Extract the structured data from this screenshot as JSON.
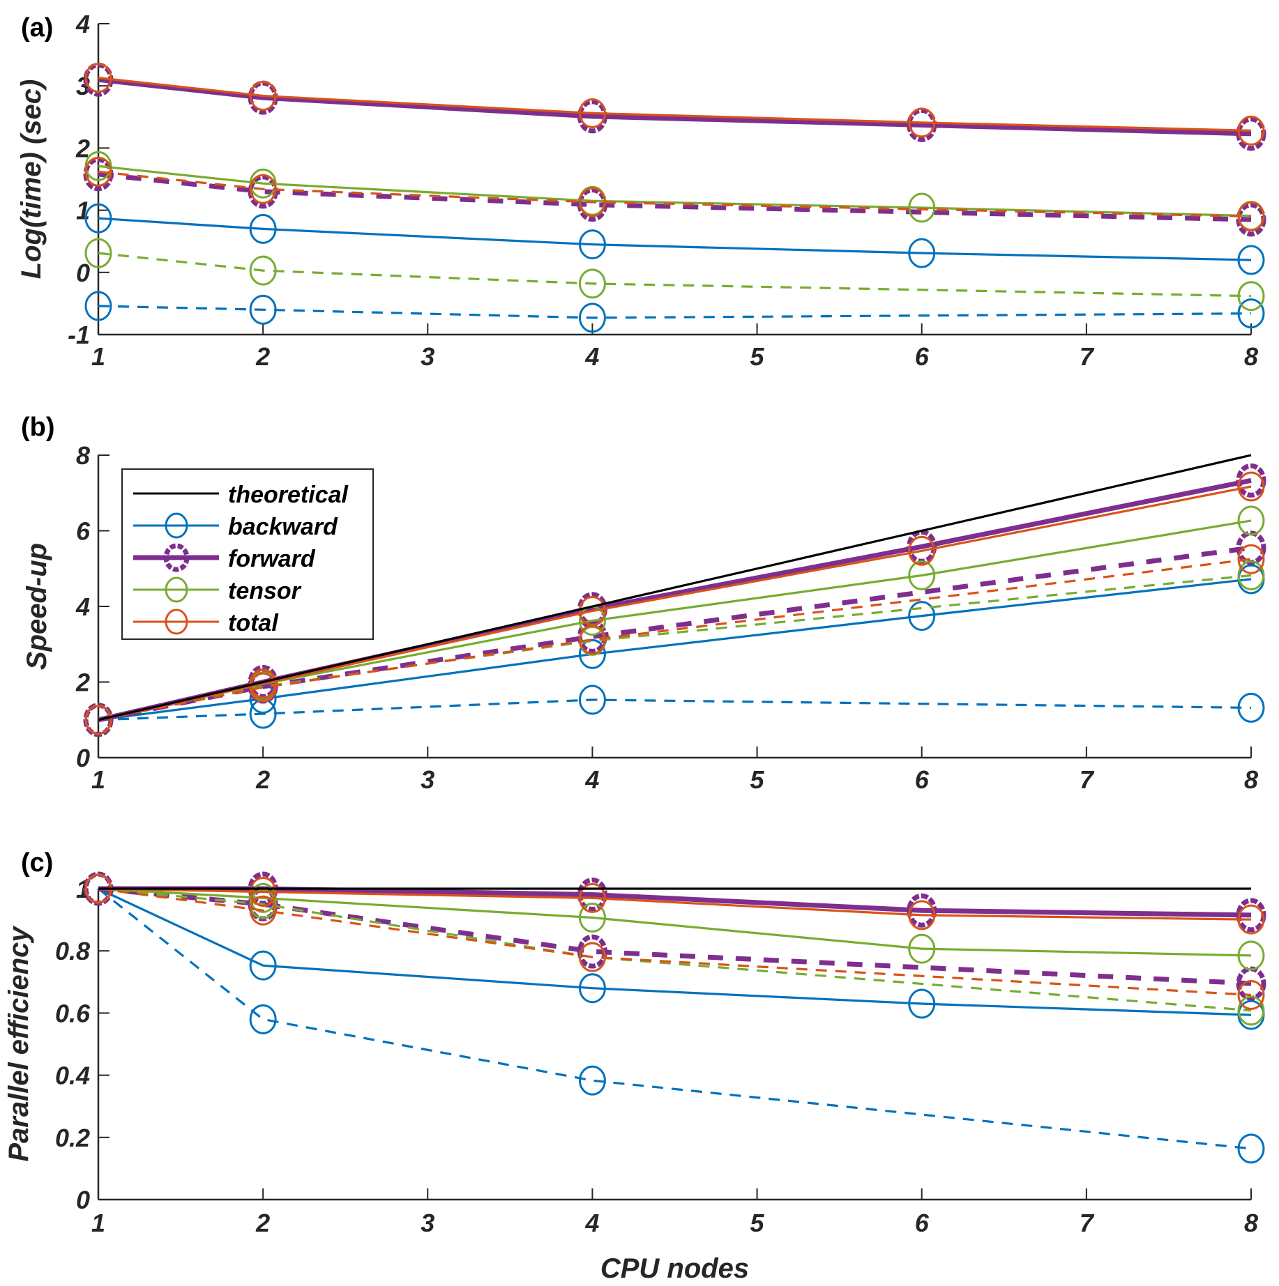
{
  "chart_data": [
    {
      "panel_label": "(a)",
      "type": "line",
      "title": "",
      "xlabel": "",
      "ylabel": "Log(time) (sec)",
      "xlim": [
        1,
        8
      ],
      "ylim": [
        -1,
        4
      ],
      "xticks": [
        1,
        2,
        3,
        4,
        5,
        6,
        7,
        8
      ],
      "yticks": [
        -1,
        0,
        1,
        2,
        3,
        4
      ],
      "grid": false,
      "series": [
        {
          "name": "backward",
          "style": "solid",
          "color": "#0072BD",
          "x": [
            1,
            2,
            4,
            6,
            8
          ],
          "y": [
            0.87,
            0.7,
            0.45,
            0.31,
            0.2
          ]
        },
        {
          "name": "backward (dashed)",
          "style": "dashed",
          "color": "#0072BD",
          "x": [
            1,
            2,
            4,
            8
          ],
          "y": [
            -0.54,
            -0.6,
            -0.73,
            -0.66
          ]
        },
        {
          "name": "tensor",
          "style": "solid",
          "color": "#77AC30",
          "x": [
            1,
            2,
            4,
            6,
            8
          ],
          "y": [
            1.71,
            1.43,
            1.15,
            1.04,
            0.91
          ]
        },
        {
          "name": "tensor (dashed)",
          "style": "dashed",
          "color": "#77AC30",
          "x": [
            1,
            2,
            4,
            8
          ],
          "y": [
            0.31,
            0.03,
            -0.18,
            -0.38
          ]
        },
        {
          "name": "forward",
          "style": "solid",
          "color": "#7E2F8E",
          "thick": true,
          "x": [
            1,
            2,
            4,
            6,
            8
          ],
          "y": [
            3.1,
            2.81,
            2.51,
            2.37,
            2.23
          ]
        },
        {
          "name": "forward (dashed)",
          "style": "dashed",
          "color": "#7E2F8E",
          "thick": true,
          "x": [
            1,
            2,
            4,
            8
          ],
          "y": [
            1.58,
            1.3,
            1.09,
            0.85
          ]
        },
        {
          "name": "total",
          "style": "solid",
          "color": "#D95319",
          "x": [
            1,
            2,
            4,
            6,
            8
          ],
          "y": [
            3.13,
            2.84,
            2.56,
            2.41,
            2.28
          ]
        },
        {
          "name": "total (dashed)",
          "style": "dashed",
          "color": "#D95319",
          "x": [
            1,
            2,
            4,
            8
          ],
          "y": [
            1.62,
            1.34,
            1.13,
            0.9
          ]
        }
      ]
    },
    {
      "panel_label": "(b)",
      "type": "line",
      "title": "",
      "xlabel": "",
      "ylabel": "Speed-up",
      "xlim": [
        1,
        8
      ],
      "ylim": [
        0,
        8
      ],
      "xticks": [
        1,
        2,
        3,
        4,
        5,
        6,
        7,
        8
      ],
      "yticks": [
        0,
        2,
        4,
        6,
        8
      ],
      "grid": false,
      "legend": {
        "position": "top-left",
        "entries": [
          "theoretical",
          "backward",
          "forward",
          "tensor",
          "total"
        ]
      },
      "series": [
        {
          "name": "theoretical",
          "style": "solid",
          "color": "#000000",
          "marker": false,
          "x": [
            1,
            8
          ],
          "y": [
            1,
            8
          ]
        },
        {
          "name": "backward",
          "style": "solid",
          "color": "#0072BD",
          "x": [
            1,
            2,
            4,
            6,
            8
          ],
          "y": [
            1.0,
            1.56,
            2.74,
            3.75,
            4.72
          ]
        },
        {
          "name": "backward (dashed)",
          "style": "dashed",
          "color": "#0072BD",
          "x": [
            1,
            2,
            4,
            8
          ],
          "y": [
            1.0,
            1.16,
            1.53,
            1.32
          ]
        },
        {
          "name": "tensor",
          "style": "solid",
          "color": "#77AC30",
          "x": [
            1,
            2,
            4,
            6,
            8
          ],
          "y": [
            1.0,
            1.95,
            3.62,
            4.82,
            6.27
          ]
        },
        {
          "name": "tensor (dashed)",
          "style": "dashed",
          "color": "#77AC30",
          "x": [
            1,
            2,
            4,
            8
          ],
          "y": [
            1.0,
            1.88,
            3.09,
            4.82
          ]
        },
        {
          "name": "forward",
          "style": "solid",
          "color": "#7E2F8E",
          "thick": true,
          "x": [
            1,
            2,
            4,
            6,
            8
          ],
          "y": [
            1.0,
            2.0,
            3.93,
            5.58,
            7.33
          ]
        },
        {
          "name": "forward (dashed)",
          "style": "dashed",
          "color": "#7E2F8E",
          "thick": true,
          "x": [
            1,
            2,
            4,
            8
          ],
          "y": [
            1.0,
            1.88,
            3.2,
            5.55
          ]
        },
        {
          "name": "total",
          "style": "solid",
          "color": "#D95319",
          "x": [
            1,
            2,
            4,
            6,
            8
          ],
          "y": [
            1.0,
            1.96,
            3.88,
            5.47,
            7.17
          ]
        },
        {
          "name": "total (dashed)",
          "style": "dashed",
          "color": "#D95319",
          "x": [
            1,
            2,
            4,
            8
          ],
          "y": [
            1.0,
            1.86,
            3.12,
            5.25
          ]
        }
      ]
    },
    {
      "panel_label": "(c)",
      "type": "line",
      "title": "",
      "xlabel": "CPU nodes",
      "ylabel": "Parallel efficiency",
      "xlim": [
        1,
        8
      ],
      "ylim": [
        0,
        1
      ],
      "xticks": [
        1,
        2,
        3,
        4,
        5,
        6,
        7,
        8
      ],
      "yticks": [
        0,
        0.2,
        0.4,
        0.6,
        0.8,
        1
      ],
      "grid": false,
      "series": [
        {
          "name": "theoretical",
          "style": "solid",
          "color": "#000000",
          "marker": false,
          "x": [
            1,
            8
          ],
          "y": [
            1,
            1
          ]
        },
        {
          "name": "backward",
          "style": "solid",
          "color": "#0072BD",
          "x": [
            1,
            2,
            4,
            6,
            8
          ],
          "y": [
            1.0,
            0.753,
            0.68,
            0.63,
            0.594
          ]
        },
        {
          "name": "backward (dashed)",
          "style": "dashed",
          "color": "#0072BD",
          "x": [
            1,
            2,
            4,
            8
          ],
          "y": [
            1.0,
            0.58,
            0.383,
            0.164
          ]
        },
        {
          "name": "tensor",
          "style": "solid",
          "color": "#77AC30",
          "x": [
            1,
            2,
            4,
            6,
            8
          ],
          "y": [
            1.0,
            0.97,
            0.907,
            0.807,
            0.785
          ]
        },
        {
          "name": "tensor (dashed)",
          "style": "dashed",
          "color": "#77AC30",
          "x": [
            1,
            2,
            4,
            8
          ],
          "y": [
            1.0,
            0.95,
            0.78,
            0.608
          ]
        },
        {
          "name": "forward",
          "style": "solid",
          "color": "#7E2F8E",
          "thick": true,
          "x": [
            1,
            2,
            4,
            6,
            8
          ],
          "y": [
            1.0,
            1.0,
            0.981,
            0.93,
            0.915
          ]
        },
        {
          "name": "forward (dashed)",
          "style": "dashed",
          "color": "#7E2F8E",
          "thick": true,
          "x": [
            1,
            2,
            4,
            8
          ],
          "y": [
            1.0,
            0.95,
            0.798,
            0.695
          ]
        },
        {
          "name": "total",
          "style": "solid",
          "color": "#D95319",
          "x": [
            1,
            2,
            4,
            6,
            8
          ],
          "y": [
            1.0,
            0.99,
            0.97,
            0.915,
            0.901
          ]
        },
        {
          "name": "total (dashed)",
          "style": "dashed",
          "color": "#D95319",
          "x": [
            1,
            2,
            4,
            8
          ],
          "y": [
            1.0,
            0.93,
            0.78,
            0.658
          ]
        }
      ]
    }
  ]
}
